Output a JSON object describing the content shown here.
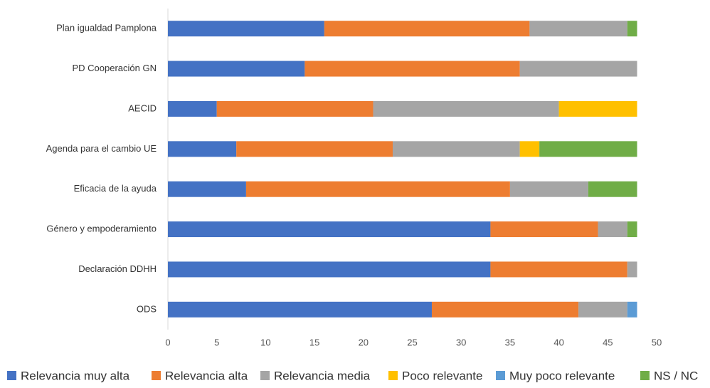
{
  "chart_data": {
    "type": "stacked-bar-horizontal",
    "categories": [
      "Plan igualdad Pamplona",
      "PD Cooperación GN",
      "AECID",
      "Agenda para el cambio UE",
      "Eficacia de la ayuda",
      "Género y empoderamiento",
      "Declaración DDHH",
      "ODS"
    ],
    "series": [
      {
        "name": "Relevancia muy alta",
        "color": "#4472c4",
        "values": [
          16,
          14,
          5,
          7,
          8,
          33,
          33,
          27
        ]
      },
      {
        "name": "Relevancia alta",
        "color": "#ed7d31",
        "values": [
          21,
          22,
          16,
          16,
          27,
          11,
          14,
          15
        ]
      },
      {
        "name": "Relevancia media",
        "color": "#a5a5a5",
        "values": [
          10,
          12,
          19,
          13,
          8,
          3,
          1,
          5
        ]
      },
      {
        "name": "Poco relevante",
        "color": "#ffc000",
        "values": [
          0,
          0,
          8,
          2,
          0,
          0,
          0,
          0
        ]
      },
      {
        "name": "Muy poco relevante",
        "color": "#5b9bd5",
        "values": [
          0,
          0,
          0,
          0,
          0,
          0,
          0,
          1
        ]
      },
      {
        "name": "NS / NC",
        "color": "#70ad47",
        "values": [
          1,
          0,
          0,
          10,
          5,
          1,
          0,
          0
        ]
      }
    ],
    "xlim": [
      0,
      50
    ],
    "xticks": [
      0,
      5,
      10,
      15,
      20,
      25,
      30,
      35,
      40,
      45,
      50
    ],
    "grid": false,
    "legend": "bottom"
  }
}
